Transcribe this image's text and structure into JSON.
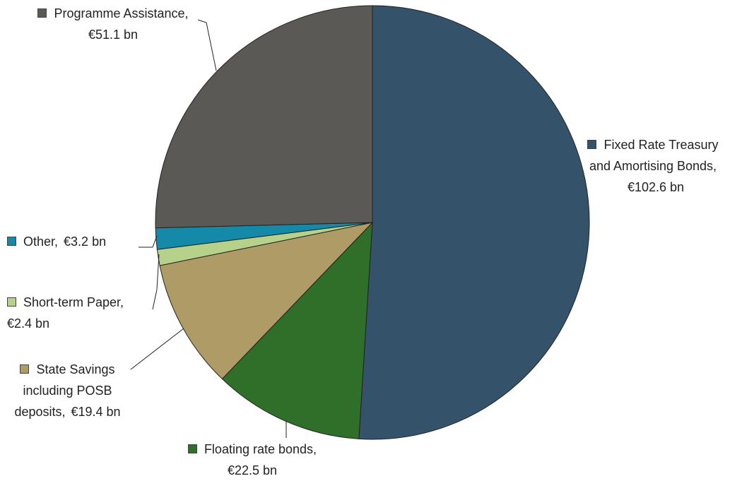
{
  "chart_data": {
    "type": "pie",
    "categories": [
      "Fixed Rate Treasury and Amortising Bonds,",
      "Floating rate bonds,",
      "State Savings including POSB deposits,",
      "Short-term Paper,",
      "Other,",
      "Programme Assistance,"
    ],
    "values": [
      102.6,
      22.5,
      19.4,
      2.4,
      3.2,
      51.1
    ],
    "value_labels": [
      "€102.6 bn",
      "€22.5 bn",
      "€19.4 bn",
      "€2.4 bn",
      "€3.2 bn",
      "€51.1 bn"
    ],
    "colors": [
      "#34536a",
      "#2f6f2a",
      "#ae9b65",
      "#b5d18a",
      "#1589a8",
      "#5a5955"
    ]
  }
}
